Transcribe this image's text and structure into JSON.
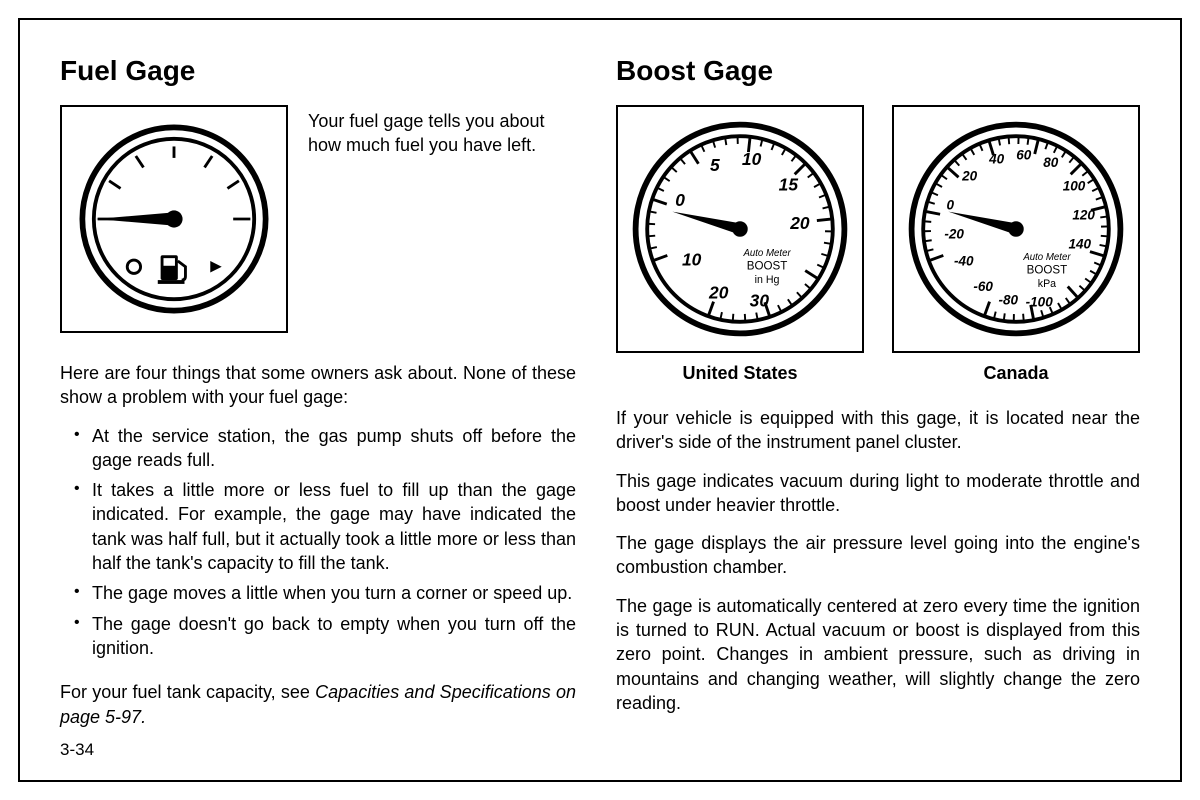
{
  "page_number": "3-34",
  "left": {
    "title": "Fuel Gage",
    "intro": "Your fuel gage tells you about how much fuel you have left.",
    "para1": "Here are four things that some owners ask about. None of these show a problem with your fuel gage:",
    "bullets": [
      "At the service station, the gas pump shuts off before the gage reads full.",
      "It takes a little more or less fuel to fill up than the gage indicated. For example, the gage may have indicated the tank was half full, but it actually took a little more or less than half the tank's capacity to fill the tank.",
      "The gage moves a little when you turn a corner or speed up.",
      "The gage doesn't go back to empty when you turn off the ignition."
    ],
    "footer_a": "For your fuel tank capacity, see ",
    "footer_b": "Capacities and Specifications on page 5-97."
  },
  "right": {
    "title": "Boost Gage",
    "caption_us": "United States",
    "caption_ca": "Canada",
    "p1": "If your vehicle is equipped with this gage, it is located near the driver's side of the instrument panel cluster.",
    "p2": "This gage indicates vacuum during light to moderate throttle and boost under heavier throttle.",
    "p3": "The gage displays the air pressure level going into the engine's combustion chamber.",
    "p4": "The gage is automatically centered at zero every time the ignition is turned to RUN. Actual vacuum or boost is displayed from this zero point. Changes in ambient pressure, such as driving in mountains and changing weather, will slightly change the zero reading."
  },
  "gauge_us": {
    "brand": "Auto Meter",
    "label": "BOOST",
    "unit": "in Hg",
    "top_labels": [
      "5",
      "10",
      "15",
      "20"
    ],
    "bottom_labels": [
      "0",
      "10",
      "20",
      "30"
    ]
  },
  "gauge_ca": {
    "brand": "Auto Meter",
    "label": "BOOST",
    "unit": "kPa",
    "top_labels": [
      "20",
      "40",
      "60",
      "80",
      "100",
      "120",
      "140"
    ],
    "bottom_labels": [
      "0",
      "-20",
      "-40",
      "-60",
      "-80",
      "-100"
    ]
  },
  "colors": {
    "stroke": "#000000",
    "bg": "#ffffff"
  }
}
